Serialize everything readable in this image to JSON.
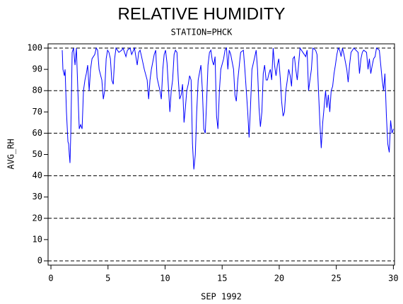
{
  "chart_data": {
    "type": "line",
    "title": "RELATIVE HUMIDITY",
    "subtitle": "STATION=PHCK",
    "x_label": "SEP 1992",
    "y_label": "AVG_RH",
    "xlim": [
      -0.25,
      30.1
    ],
    "ylim": [
      -2,
      102
    ],
    "xticks": [
      0,
      5,
      10,
      15,
      20,
      25,
      30
    ],
    "yticks": [
      0,
      10,
      20,
      30,
      40,
      50,
      60,
      70,
      80,
      90,
      100
    ],
    "grid_lines": [
      0,
      20,
      40,
      60,
      80,
      100
    ],
    "series": [
      {
        "name": "AVG_RH",
        "color": "#0000ff",
        "x": [
          0.99,
          1.05,
          1.18,
          1.24,
          1.36,
          1.49,
          1.55,
          1.61,
          1.67,
          1.74,
          1.86,
          1.98,
          2.11,
          2.23,
          2.36,
          2.48,
          2.6,
          2.73,
          2.85,
          2.98,
          3.1,
          3.22,
          3.35,
          3.47,
          3.6,
          3.84,
          3.97,
          4.09,
          4.22,
          4.46,
          4.59,
          4.71,
          4.84,
          4.96,
          5.08,
          5.21,
          5.33,
          5.46,
          5.58,
          5.7,
          5.95,
          6.2,
          6.32,
          6.57,
          6.7,
          6.94,
          7.07,
          7.32,
          7.56,
          7.69,
          7.81,
          7.94,
          8.18,
          8.43,
          8.56,
          8.68,
          8.8,
          9.05,
          9.18,
          9.3,
          9.55,
          9.67,
          9.8,
          9.92,
          10.04,
          10.17,
          10.29,
          10.42,
          10.54,
          10.66,
          10.79,
          10.91,
          11.04,
          11.16,
          11.28,
          11.41,
          11.53,
          11.66,
          11.78,
          11.9,
          12.03,
          12.15,
          12.28,
          12.4,
          12.52,
          12.65,
          12.77,
          12.9,
          13.14,
          13.27,
          13.39,
          13.52,
          13.64,
          13.76,
          13.89,
          14.01,
          14.14,
          14.26,
          14.38,
          14.51,
          14.63,
          14.76,
          14.88,
          15.13,
          15.25,
          15.38,
          15.5,
          15.62,
          15.75,
          16.0,
          16.12,
          16.24,
          16.37,
          16.62,
          16.86,
          16.99,
          17.24,
          17.36,
          17.48,
          17.61,
          17.86,
          17.98,
          18.1,
          18.23,
          18.35,
          18.48,
          18.6,
          18.72,
          18.85,
          18.97,
          19.1,
          19.22,
          19.34,
          19.47,
          19.59,
          19.72,
          19.84,
          19.96,
          20.09,
          20.21,
          20.34,
          20.46,
          20.58,
          20.71,
          20.83,
          20.96,
          21.08,
          21.2,
          21.33,
          21.45,
          21.58,
          21.82,
          22.07,
          22.32,
          22.44,
          22.57,
          22.69,
          22.82,
          22.94,
          23.19,
          23.31,
          23.44,
          23.56,
          23.68,
          23.81,
          23.93,
          24.06,
          24.18,
          24.3,
          24.43,
          24.55,
          24.68,
          24.8,
          24.92,
          25.05,
          25.17,
          25.3,
          25.42,
          25.54,
          25.67,
          25.92,
          26.04,
          26.16,
          26.29,
          26.54,
          26.91,
          27.03,
          27.16,
          27.28,
          27.4,
          27.65,
          27.78,
          27.9,
          28.02,
          28.15,
          28.27,
          28.4,
          28.52,
          28.77,
          29.02,
          29.14,
          29.26,
          29.39,
          29.51,
          29.64,
          29.76,
          29.88,
          30.0
        ],
        "values": [
          99,
          90,
          87,
          90,
          70,
          56,
          55,
          50,
          46,
          60,
          98,
          100,
          92,
          100,
          80,
          62,
          64,
          62,
          80,
          85,
          88,
          92,
          80,
          90,
          95,
          97,
          100,
          99,
          90,
          85,
          76,
          80,
          95,
          99,
          98,
          95,
          85,
          83,
          95,
          100,
          98,
          99,
          100,
          96,
          99,
          100,
          97,
          100,
          92,
          98,
          99,
          96,
          90,
          85,
          76,
          85,
          90,
          97,
          99,
          86,
          80,
          76,
          90,
          97,
          99,
          93,
          82,
          70,
          80,
          85,
          97,
          99,
          98,
          85,
          76,
          78,
          83,
          65,
          72,
          80,
          83,
          87,
          85,
          55,
          43,
          50,
          70,
          85,
          92,
          80,
          62,
          60,
          75,
          92,
          98,
          99,
          94,
          92,
          96,
          68,
          62,
          80,
          90,
          95,
          99,
          100,
          90,
          99,
          97,
          90,
          78,
          75,
          85,
          98,
          99,
          90,
          70,
          58,
          72,
          90,
          96,
          99,
          90,
          72,
          63,
          70,
          88,
          92,
          85,
          85,
          88,
          90,
          85,
          100,
          92,
          87,
          92,
          95,
          86,
          75,
          68,
          70,
          80,
          85,
          90,
          87,
          82,
          95,
          96,
          90,
          85,
          100,
          98,
          96,
          99,
          80,
          85,
          90,
          100,
          99,
          97,
          80,
          65,
          53,
          65,
          72,
          80,
          72,
          78,
          70,
          80,
          82,
          88,
          92,
          97,
          100,
          99,
          96,
          100,
          97,
          90,
          84,
          92,
          98,
          100,
          98,
          88,
          95,
          98,
          99,
          98,
          90,
          95,
          88,
          92,
          95,
          96,
          100,
          99,
          85,
          80,
          88,
          68,
          55,
          51,
          66,
          60,
          62
        ]
      }
    ]
  }
}
